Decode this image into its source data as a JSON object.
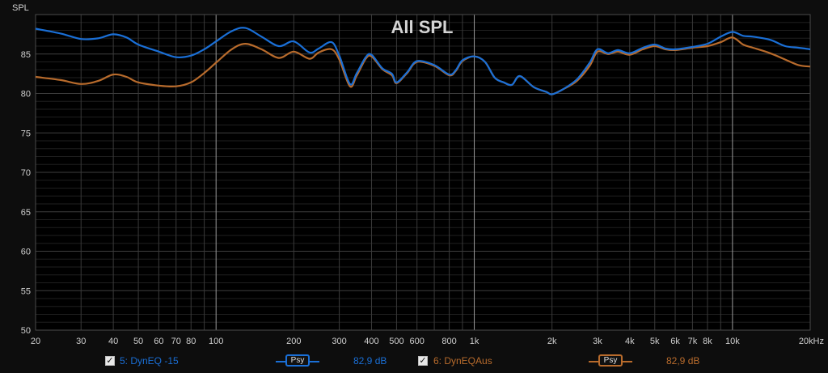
{
  "chart_data": {
    "type": "line",
    "title": "All SPL",
    "ylabel": "SPL",
    "xlabel": "",
    "xscale": "log",
    "xlim": [
      20,
      20000
    ],
    "ylim": [
      50,
      90
    ],
    "grid": true,
    "yticks": [
      "50",
      "55",
      "60",
      "65",
      "70",
      "75",
      "80",
      "85"
    ],
    "xticks": [
      {
        "v": 20,
        "t": "20"
      },
      {
        "v": 30,
        "t": "30"
      },
      {
        "v": 40,
        "t": "40"
      },
      {
        "v": 50,
        "t": "50"
      },
      {
        "v": 60,
        "t": "60"
      },
      {
        "v": 70,
        "t": "70"
      },
      {
        "v": 80,
        "t": "80"
      },
      {
        "v": 100,
        "t": "100"
      },
      {
        "v": 200,
        "t": "200"
      },
      {
        "v": 300,
        "t": "300"
      },
      {
        "v": 400,
        "t": "400"
      },
      {
        "v": 500,
        "t": "500"
      },
      {
        "v": 600,
        "t": "600"
      },
      {
        "v": 800,
        "t": "800"
      },
      {
        "v": 1000,
        "t": "1k"
      },
      {
        "v": 2000,
        "t": "2k"
      },
      {
        "v": 3000,
        "t": "3k"
      },
      {
        "v": 4000,
        "t": "4k"
      },
      {
        "v": 5000,
        "t": "5k"
      },
      {
        "v": 6000,
        "t": "6k"
      },
      {
        "v": 7000,
        "t": "7k"
      },
      {
        "v": 8000,
        "t": "8k"
      },
      {
        "v": 10000,
        "t": "10k"
      },
      {
        "v": 20000,
        "t": "20kHz"
      }
    ],
    "series": [
      {
        "name": "5: DynEQ -15",
        "color": "#1a6fd6",
        "x": [
          20,
          25,
          30,
          35,
          40,
          45,
          50,
          60,
          70,
          80,
          90,
          100,
          115,
          130,
          150,
          175,
          200,
          230,
          250,
          280,
          300,
          330,
          350,
          380,
          400,
          440,
          480,
          500,
          550,
          600,
          700,
          800,
          850,
          900,
          1000,
          1100,
          1200,
          1300,
          1400,
          1500,
          1700,
          1900,
          2000,
          2200,
          2500,
          2800,
          3000,
          3300,
          3600,
          4000,
          4500,
          5000,
          5500,
          6000,
          7000,
          8000,
          9000,
          10000,
          11000,
          12000,
          14000,
          16000,
          18000,
          20000
        ],
        "y": [
          88.2,
          87.6,
          86.9,
          87.0,
          87.5,
          87.1,
          86.2,
          85.3,
          84.6,
          84.8,
          85.6,
          86.6,
          87.9,
          88.3,
          87.2,
          86.0,
          86.6,
          85.2,
          85.7,
          86.5,
          84.8,
          81.2,
          82.5,
          84.6,
          84.9,
          83.2,
          82.5,
          81.4,
          82.7,
          84.1,
          83.6,
          82.4,
          83.0,
          84.2,
          84.7,
          84.0,
          82.0,
          81.4,
          81.1,
          82.2,
          80.8,
          80.2,
          79.9,
          80.5,
          81.8,
          83.9,
          85.6,
          85.1,
          85.5,
          85.1,
          85.8,
          86.2,
          85.7,
          85.6,
          85.9,
          86.3,
          87.2,
          87.8,
          87.3,
          87.2,
          86.8,
          86.0,
          85.8,
          85.6
        ]
      },
      {
        "name": "6: DynEQAus",
        "color": "#b86b2c",
        "x": [
          20,
          25,
          30,
          35,
          40,
          45,
          50,
          60,
          70,
          80,
          90,
          100,
          115,
          130,
          150,
          175,
          200,
          230,
          250,
          280,
          300,
          330,
          350,
          380,
          400,
          440,
          480,
          500,
          550,
          600,
          700,
          800,
          850,
          900,
          1000,
          1100,
          1200,
          1300,
          1400,
          1500,
          1700,
          1900,
          2000,
          2200,
          2500,
          2800,
          3000,
          3300,
          3600,
          4000,
          4500,
          5000,
          5500,
          6000,
          7000,
          8000,
          9000,
          10000,
          11000,
          12000,
          14000,
          16000,
          18000,
          20000
        ],
        "y": [
          82.1,
          81.7,
          81.2,
          81.6,
          82.4,
          82.1,
          81.4,
          81.0,
          80.9,
          81.4,
          82.6,
          83.9,
          85.6,
          86.3,
          85.6,
          84.5,
          85.3,
          84.4,
          85.2,
          85.6,
          84.3,
          80.9,
          82.2,
          84.4,
          84.7,
          83.1,
          82.3,
          81.3,
          82.6,
          84.0,
          83.5,
          82.3,
          82.9,
          84.1,
          84.7,
          84.0,
          82.0,
          81.4,
          81.1,
          82.2,
          80.8,
          80.2,
          79.9,
          80.5,
          81.6,
          83.5,
          85.3,
          85.0,
          85.3,
          84.9,
          85.6,
          86.0,
          85.6,
          85.5,
          85.8,
          86.0,
          86.5,
          87.1,
          86.2,
          85.8,
          85.1,
          84.3,
          83.6,
          83.4
        ]
      }
    ]
  },
  "legend": {
    "items": [
      {
        "label": "5: DynEQ -15",
        "checkbox": "✓",
        "psy_label": "Psy",
        "value": "82,9 dB",
        "color": "#1a6fd6"
      },
      {
        "label": "6: DynEQAus",
        "checkbox": "✓",
        "psy_label": "Psy",
        "value": "82,9 dB",
        "color": "#b86b2c"
      }
    ]
  }
}
